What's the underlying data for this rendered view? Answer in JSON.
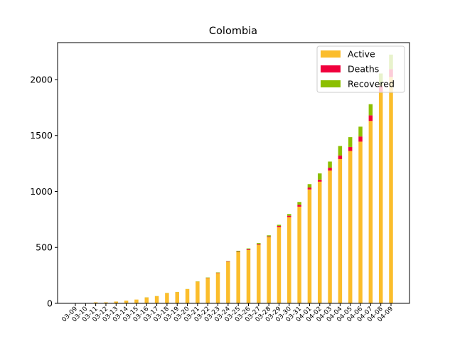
{
  "chart_data": {
    "type": "stacked_bar",
    "title": "Colombia",
    "categories": [
      "03-09",
      "03-10",
      "03-11",
      "03-12",
      "03-13",
      "03-14",
      "03-15",
      "03-16",
      "03-17",
      "03-18",
      "03-19",
      "03-20",
      "03-21",
      "03-22",
      "03-23",
      "03-24",
      "03-25",
      "03-26",
      "03-27",
      "03-28",
      "03-29",
      "03-30",
      "03-31",
      "04-01",
      "04-02",
      "04-03",
      "04-04",
      "04-05",
      "04-06",
      "04-07",
      "04-08",
      "04-09"
    ],
    "series": [
      {
        "name": "Active",
        "color": "#fbbd2b",
        "values": [
          1,
          3,
          9,
          9,
          16,
          24,
          34,
          53,
          64,
          92,
          101,
          127,
          194,
          226,
          271,
          372,
          458,
          477,
          523,
          592,
          682,
          771,
          864,
          1018,
          1087,
          1187,
          1289,
          1362,
          1445,
          1630,
          1891,
          2023
        ]
      },
      {
        "name": "Deaths",
        "color": "#f0003c",
        "values": [
          0,
          0,
          0,
          0,
          0,
          0,
          0,
          0,
          0,
          0,
          0,
          0,
          0,
          2,
          3,
          3,
          4,
          6,
          6,
          6,
          10,
          12,
          16,
          17,
          19,
          25,
          32,
          35,
          46,
          50,
          54,
          69
        ]
      },
      {
        "name": "Recovered",
        "color": "#8bbf00",
        "values": [
          0,
          0,
          0,
          0,
          0,
          0,
          0,
          1,
          1,
          1,
          1,
          1,
          2,
          3,
          3,
          3,
          8,
          8,
          10,
          10,
          10,
          15,
          26,
          30,
          55,
          55,
          85,
          88,
          88,
          100,
          109,
          131
        ]
      }
    ],
    "ylim": [
      0,
      2330
    ],
    "yticks": [
      0,
      500,
      1000,
      1500,
      2000
    ],
    "legend": "upper right"
  }
}
